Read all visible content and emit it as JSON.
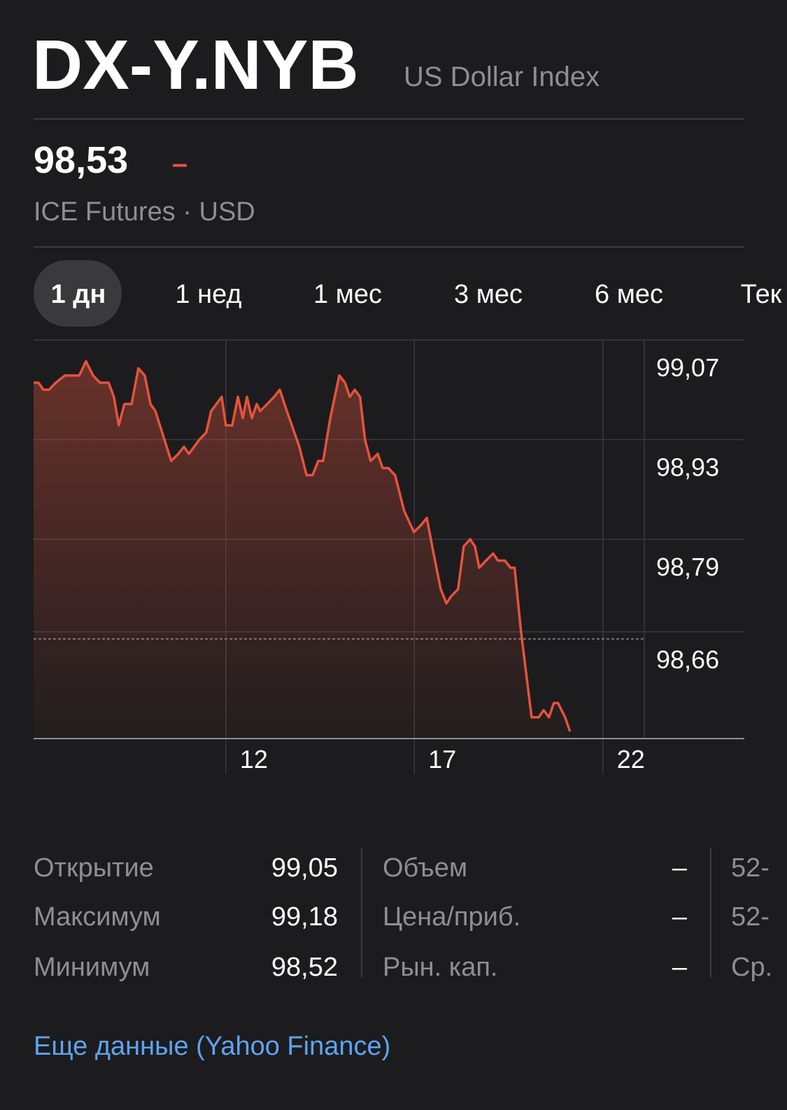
{
  "header": {
    "symbol": "DX-Y.NYB",
    "name": "US Dollar Index"
  },
  "quote": {
    "price": "98,53",
    "change": "–",
    "exchange": "ICE Futures · USD"
  },
  "ranges": [
    "1 дн",
    "1 нед",
    "1 мес",
    "3 мес",
    "6 мес",
    "Тек"
  ],
  "chart_data": {
    "type": "line",
    "color": "#e5533d",
    "x": [
      6.9,
      7.03,
      7.16,
      7.31,
      7.49,
      7.73,
      7.92,
      8.11,
      8.29,
      8.48,
      8.66,
      8.89,
      9.03,
      9.16,
      9.31,
      9.5,
      9.68,
      9.85,
      10.0,
      10.13,
      10.37,
      10.55,
      10.74,
      10.89,
      11.02,
      11.3,
      11.48,
      11.61,
      11.89,
      12.0,
      12.17,
      12.32,
      12.45,
      12.56,
      12.69,
      12.82,
      12.91,
      13.1,
      13.28,
      13.43,
      13.62,
      13.95,
      14.14,
      14.3,
      14.45,
      14.58,
      14.77,
      15.01,
      15.16,
      15.29,
      15.42,
      15.56,
      15.69,
      15.84,
      16.03,
      16.16,
      16.31,
      16.49,
      16.73,
      16.99,
      17.18,
      17.33,
      17.51,
      17.7,
      17.85,
      17.98,
      18.16,
      18.31,
      18.48,
      18.61,
      18.72,
      18.9,
      19.09,
      19.22,
      19.4,
      19.55,
      19.66,
      19.83,
      20.11,
      20.3,
      20.43,
      20.57,
      20.7,
      20.81,
      21.0,
      21.13
    ],
    "values": [
      99.01,
      99.01,
      99.0,
      99.0,
      99.01,
      99.02,
      99.02,
      99.02,
      99.04,
      99.02,
      99.01,
      99.01,
      98.99,
      98.95,
      98.98,
      98.98,
      99.03,
      99.02,
      98.98,
      98.97,
      98.93,
      98.9,
      98.91,
      98.92,
      98.91,
      98.93,
      98.94,
      98.97,
      98.99,
      98.95,
      98.95,
      98.99,
      98.96,
      98.99,
      98.96,
      98.98,
      98.97,
      98.98,
      98.99,
      99.0,
      98.97,
      98.92,
      98.88,
      98.88,
      98.9,
      98.9,
      98.96,
      99.02,
      99.01,
      98.99,
      99.0,
      98.99,
      98.93,
      98.9,
      98.91,
      98.89,
      98.89,
      98.88,
      98.83,
      98.8,
      98.81,
      98.82,
      98.77,
      98.72,
      98.7,
      98.71,
      98.72,
      98.78,
      98.79,
      98.78,
      98.75,
      98.76,
      98.77,
      98.76,
      98.76,
      98.75,
      98.75,
      98.66,
      98.54,
      98.54,
      98.55,
      98.54,
      98.56,
      98.56,
      98.54,
      98.52
    ],
    "xlim": [
      6.9,
      23.1
    ],
    "xticks": [
      12,
      17,
      22
    ],
    "ylim": [
      98.51,
      99.07
    ],
    "yticks": [
      {
        "value": 99.07,
        "label": "99,07"
      },
      {
        "value": 98.93,
        "label": "98,93"
      },
      {
        "value": 98.79,
        "label": "98,79"
      },
      {
        "value": 98.66,
        "label": "98,66"
      }
    ],
    "reference_line": 98.65,
    "grid": true
  },
  "stats": {
    "rows": [
      [
        "Открытие",
        "99,05",
        "Объем",
        "–",
        "52-"
      ],
      [
        "Максимум",
        "99,18",
        "Цена/приб.",
        "–",
        "52-"
      ],
      [
        "Минимум",
        "98,52",
        "Рын. кап.",
        "–",
        "Ср."
      ]
    ]
  },
  "link": "Еще данные (Yahoo Finance)"
}
